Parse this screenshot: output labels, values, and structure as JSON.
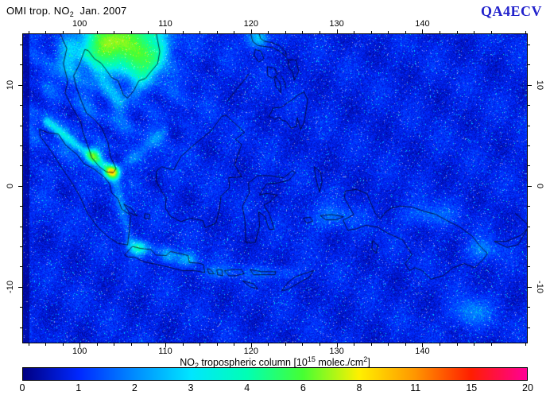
{
  "figure": {
    "title": {
      "pre": "OMI trop. NO",
      "sub": "2",
      "post": "  Jan. 2007"
    },
    "brand": {
      "text": "QA4ECV",
      "color": "#2222CC"
    }
  },
  "map": {
    "x_tick_labels": [
      "100",
      "110",
      "120",
      "130",
      "140"
    ],
    "y_tick_labels": [
      "10",
      "0",
      "-10"
    ]
  },
  "colorbar": {
    "title": {
      "s1": "NO",
      "sub1": "2",
      "s2": " tropospheric column [10",
      "sup1": "15",
      "s3": " molec./cm",
      "sup2": "2",
      "s4": "]"
    },
    "tick_labels": [
      "0",
      "1",
      "2",
      "3",
      "4",
      "6",
      "8",
      "11",
      "15",
      "20"
    ]
  },
  "chart_data": {
    "type": "heatmap",
    "title": "OMI trop. NO2 Jan. 2007",
    "brand": "QA4ECV",
    "colorbar_label": "NO2 tropospheric column [10^15 molec./cm^2]",
    "x_axis": {
      "range": [
        93.3,
        152.3
      ],
      "ticks": [
        100,
        110,
        120,
        130,
        140
      ]
    },
    "y_axis": {
      "range": [
        -15.6,
        15.1
      ],
      "ticks": [
        10,
        0,
        -10
      ]
    },
    "scale": {
      "tick_values": [
        0,
        1,
        2,
        3,
        4,
        6,
        8,
        11,
        15,
        20
      ],
      "colors": [
        "#000082",
        "#0028ff",
        "#008cff",
        "#00e6ff",
        "#00ffb4",
        "#46ff32",
        "#fff000",
        "#ff9600",
        "#ff1e00",
        "#ff0096"
      ]
    },
    "hotspots": [
      {
        "lon": 105.5,
        "lat": 14.6,
        "sx": 2.8,
        "sy": 2.2,
        "amp": 5.0
      },
      {
        "lon": 102.5,
        "lat": 13.8,
        "sx": 1.4,
        "sy": 1.2,
        "amp": 2.5
      },
      {
        "lon": 107.5,
        "lat": 12.3,
        "sx": 1.4,
        "sy": 1.1,
        "amp": 1.8
      },
      {
        "lon": 98.6,
        "lat": 12.8,
        "sx": 1.0,
        "sy": 1.6,
        "amp": 1.4
      },
      {
        "lon": 103.8,
        "lat": 1.35,
        "sx": 0.5,
        "sy": 0.42,
        "amp": 7.5
      },
      {
        "lon": 101.6,
        "lat": 3.0,
        "sx": 0.55,
        "sy": 0.45,
        "amp": 3.8
      },
      {
        "lon": 106.8,
        "lat": -6.2,
        "sx": 0.7,
        "sy": 0.5,
        "amp": 2.4
      },
      {
        "lon": 110.4,
        "lat": -7.0,
        "sx": 0.9,
        "sy": 0.5,
        "amp": 1.3
      },
      {
        "lon": 112.7,
        "lat": -7.3,
        "sx": 0.8,
        "sy": 0.5,
        "amp": 1.6
      },
      {
        "lon": 120.8,
        "lat": 14.6,
        "sx": 0.9,
        "sy": 0.7,
        "amp": 2.0
      },
      {
        "lon": 129.3,
        "lat": -3.1,
        "sx": 2.2,
        "sy": 0.9,
        "amp": 0.8
      },
      {
        "lon": 145.6,
        "lat": -12.6,
        "sx": 1.6,
        "sy": 1.0,
        "amp": 1.1
      },
      {
        "lon": 140.6,
        "lat": -2.9,
        "sx": 2.2,
        "sy": 0.8,
        "amp": 0.8
      },
      {
        "lon": 147.0,
        "lat": -6.4,
        "sx": 1.4,
        "sy": 0.8,
        "amp": 0.9
      },
      {
        "lon": 122.5,
        "lat": -8.6,
        "sx": 2.6,
        "sy": 0.5,
        "amp": 0.7
      },
      {
        "lon": 116.0,
        "lat": -8.5,
        "sx": 1.6,
        "sy": 0.5,
        "amp": 0.8
      }
    ],
    "tracks": [
      {
        "a": [
          96.2,
          6.3
        ],
        "b": [
          103.3,
          1.7
        ],
        "amp": 2.0,
        "sigma": 0.35
      },
      {
        "a": [
          100.7,
          12.9
        ],
        "b": [
          104.6,
          8.2
        ],
        "amp": 0.9,
        "sigma": 0.55
      },
      {
        "a": [
          106.4,
          9.3
        ],
        "b": [
          109.6,
          13.6
        ],
        "amp": 0.8,
        "sigma": 0.6
      },
      {
        "a": [
          104.3,
          1.4
        ],
        "b": [
          109.8,
          5.3
        ],
        "amp": 0.7,
        "sigma": 0.45
      },
      {
        "a": [
          104.1,
          0.6
        ],
        "b": [
          105.9,
          -5.3
        ],
        "amp": 0.9,
        "sigma": 0.4
      },
      {
        "a": [
          105.9,
          -5.9
        ],
        "b": [
          110.2,
          -6.4
        ],
        "amp": 0.7,
        "sigma": 0.45
      }
    ]
  }
}
